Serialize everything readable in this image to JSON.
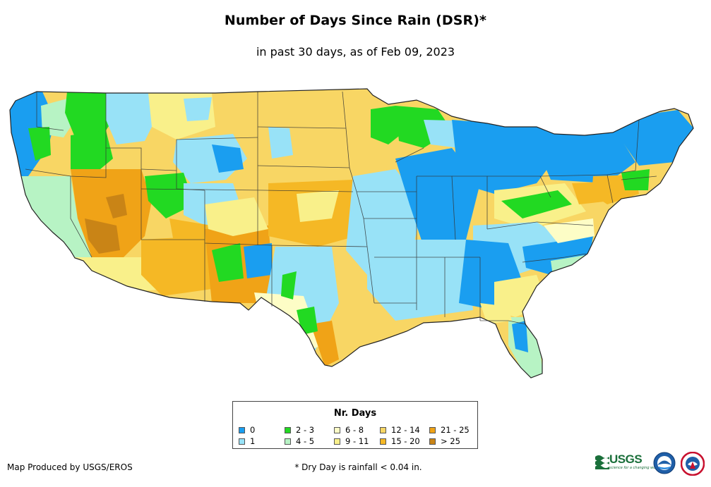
{
  "header": {
    "title": "Number of Days Since Rain (DSR)*",
    "subtitle": "in past 30 days, as of Feb 09, 2023"
  },
  "legend": {
    "title": "Nr. Days",
    "items": [
      {
        "label": "0",
        "color": "#1a9ef0"
      },
      {
        "label": "1",
        "color": "#98e2f7"
      },
      {
        "label": "2 - 3",
        "color": "#22d922"
      },
      {
        "label": "4 - 5",
        "color": "#b7f3c4"
      },
      {
        "label": "6 - 8",
        "color": "#fdfdc6"
      },
      {
        "label": "9 - 11",
        "color": "#f9f08a"
      },
      {
        "label": "12 - 14",
        "color": "#f8d664"
      },
      {
        "label": "15 - 20",
        "color": "#f5b825"
      },
      {
        "label": "21 - 25",
        "color": "#f0a317"
      },
      {
        "label": "> 25",
        "color": "#c98416"
      }
    ]
  },
  "footer": {
    "credit": "Map Produced by USGS/EROS",
    "footnote": "* Dry Day is rainfall < 0.04 in."
  },
  "logos": {
    "usgs_text": "USGS",
    "usgs_tagline": "science for a changing world",
    "noaa_icon": "noaa-logo",
    "nws_icon": "national-weather-service-logo"
  }
}
